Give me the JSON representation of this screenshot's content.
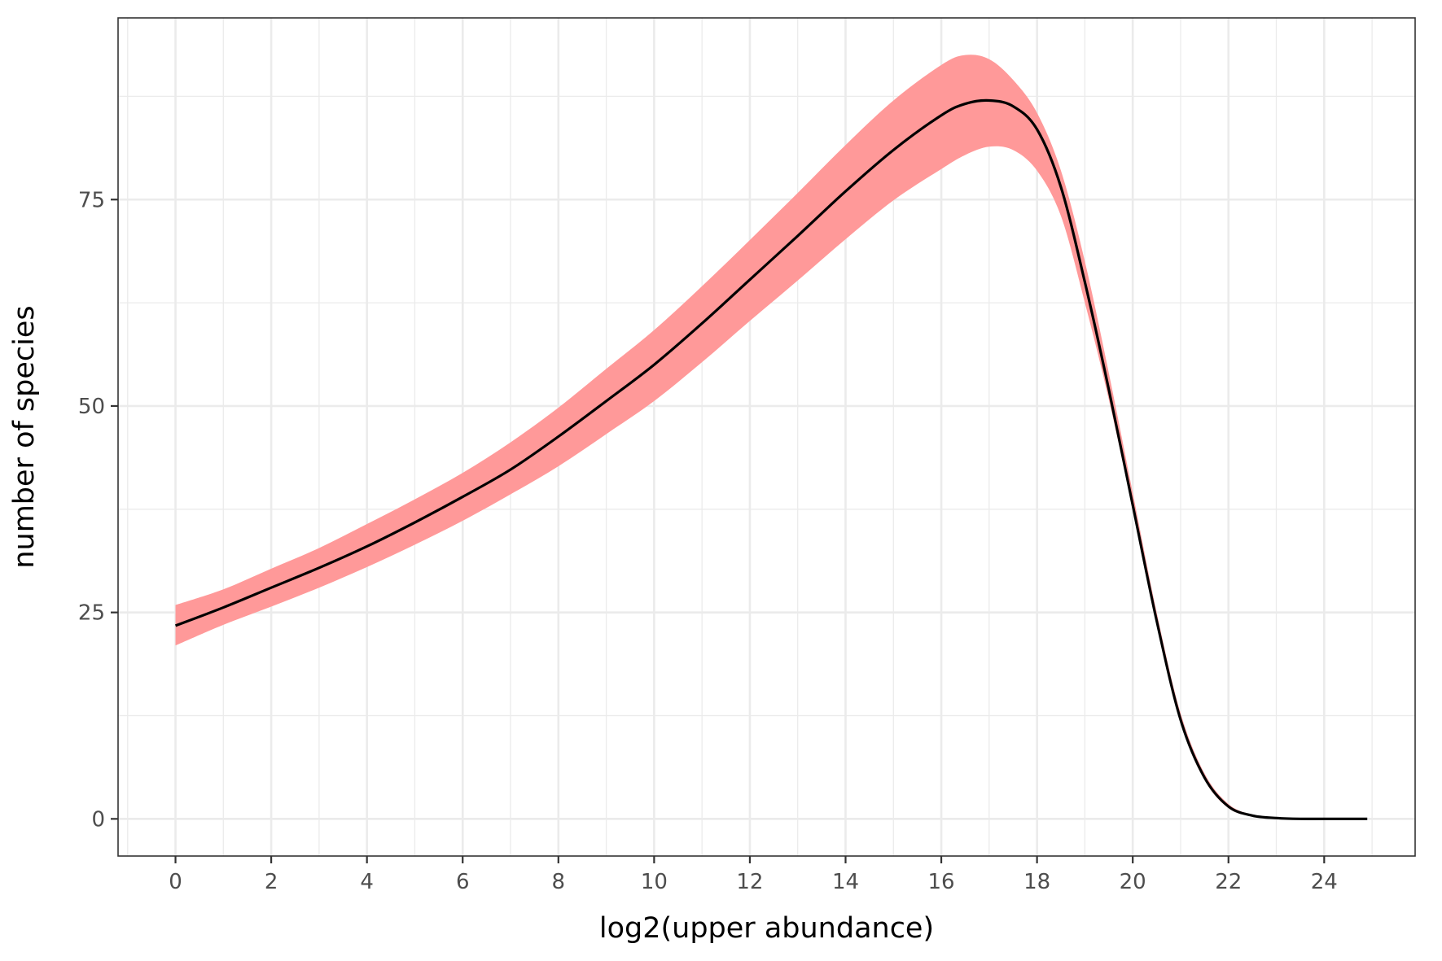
{
  "chart_data": {
    "type": "line",
    "title": "",
    "xlabel": "log2(upper abundance)",
    "ylabel": "number of species",
    "xlim": [
      -1.2,
      25.9
    ],
    "ylim": [
      -4.5,
      97
    ],
    "x_ticks": [
      0,
      2,
      4,
      6,
      8,
      10,
      12,
      14,
      16,
      18,
      20,
      22,
      24
    ],
    "x_tick_labels": [
      "0",
      "2",
      "4",
      "6",
      "8",
      "10",
      "12",
      "14",
      "16",
      "18",
      "20",
      "22",
      "24"
    ],
    "y_ticks": [
      0,
      25,
      50,
      75
    ],
    "y_tick_labels": [
      "0",
      "25",
      "50",
      "75"
    ],
    "y_minor": [
      12.5,
      37.5,
      62.5,
      87.5
    ],
    "grid": true,
    "legend": "none",
    "colors": {
      "line": "#000000",
      "ribbon": "#ff9999",
      "grid": "#ebebeb",
      "panel_border": "#333333"
    },
    "series": [
      {
        "x": [
          0,
          1,
          2,
          3,
          4,
          5,
          6,
          7,
          8,
          9,
          10,
          11,
          12,
          13,
          14,
          15,
          16,
          16.5,
          17,
          17.5,
          18,
          18.5,
          19,
          19.5,
          20,
          20.5,
          21,
          21.5,
          22,
          22.5,
          23,
          23.5,
          24,
          24.9
        ],
        "y": [
          23.4,
          25.6,
          28.0,
          30.4,
          33.0,
          35.9,
          39.0,
          42.3,
          46.3,
          50.6,
          55.0,
          60.0,
          65.3,
          70.6,
          76.0,
          81.0,
          85.2,
          86.6,
          87.0,
          86.3,
          83.5,
          76.5,
          65.0,
          52.0,
          38.0,
          24.0,
          12.0,
          5.0,
          1.5,
          0.4,
          0.1,
          0,
          0,
          0
        ],
        "lower": [
          21.0,
          23.5,
          25.7,
          28.0,
          30.5,
          33.2,
          36.1,
          39.3,
          42.7,
          46.6,
          50.6,
          55.3,
          60.3,
          65.2,
          70.2,
          74.9,
          78.7,
          80.4,
          81.4,
          81.0,
          78.5,
          73.0,
          62.5,
          50.8,
          37.5,
          23.6,
          11.6,
          4.7,
          1.3,
          0.3,
          0.05,
          0,
          0,
          0
        ],
        "upper": [
          25.9,
          27.8,
          30.3,
          32.8,
          35.7,
          38.7,
          41.9,
          45.6,
          49.8,
          54.5,
          59.2,
          64.5,
          70.1,
          75.8,
          81.6,
          87.0,
          91.3,
          92.5,
          92.0,
          89.5,
          85.5,
          78.5,
          67.5,
          54.0,
          39.5,
          25.0,
          12.8,
          5.5,
          1.8,
          0.5,
          0.15,
          0,
          0,
          0
        ]
      }
    ]
  }
}
